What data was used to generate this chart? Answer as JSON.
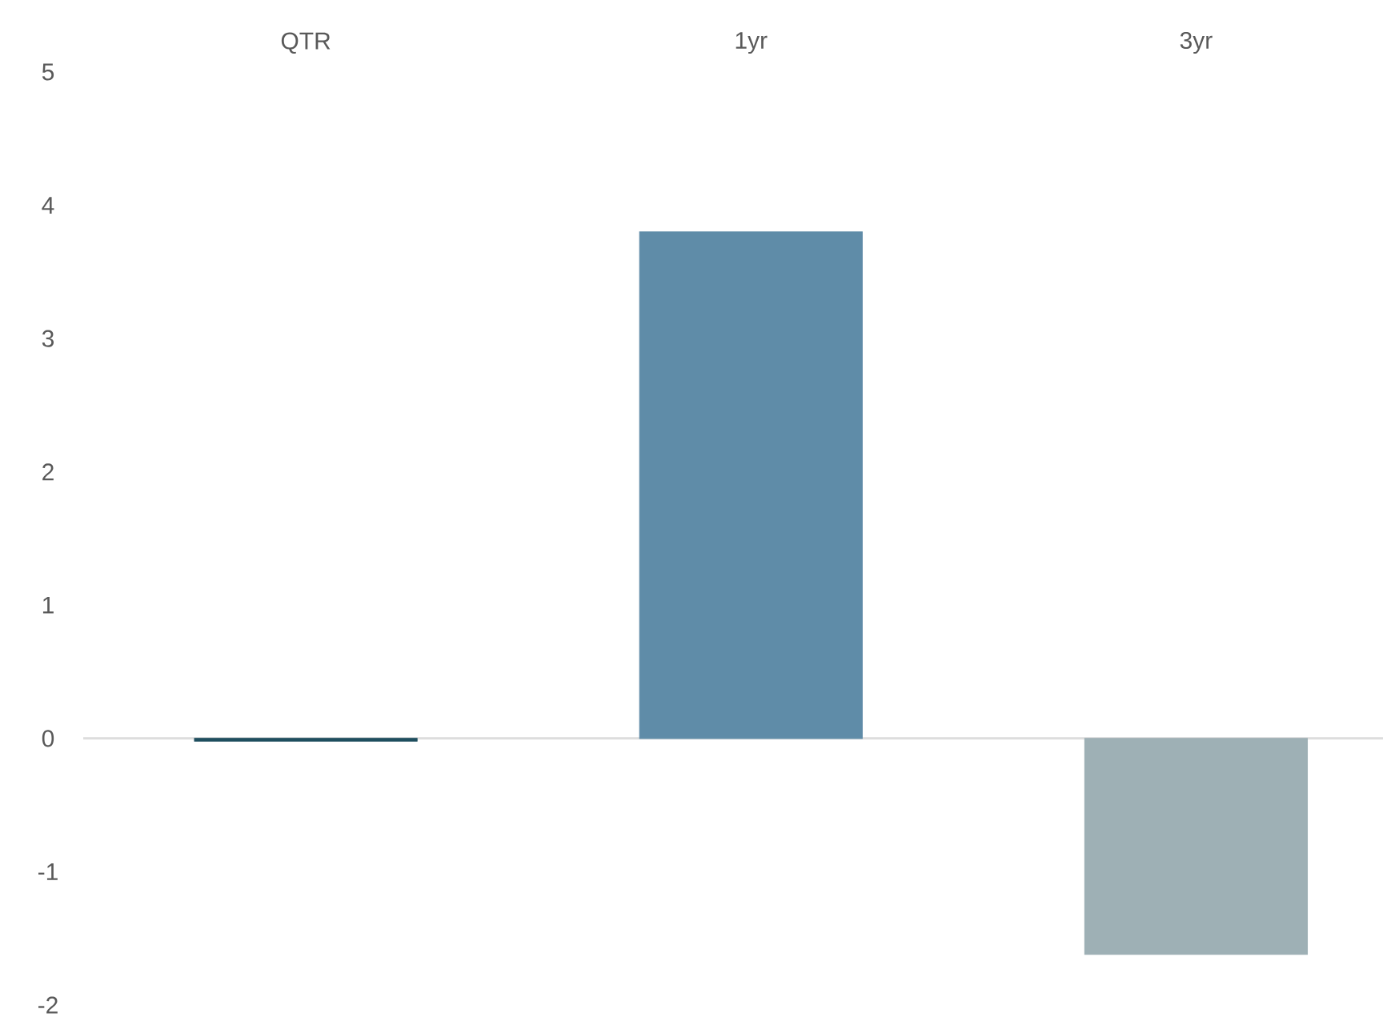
{
  "chart_data": {
    "type": "bar",
    "categories": [
      "QTR",
      "1yr",
      "3yr"
    ],
    "values": [
      -0.02,
      3.8,
      -1.62
    ],
    "colors": [
      "#1f4e5f",
      "#5f8ca8",
      "#9eb0b5"
    ],
    "ylim": [
      -2,
      5
    ],
    "yticks": [
      -2,
      -1,
      0,
      1,
      2,
      3,
      4,
      5
    ],
    "ref_lines": [
      {
        "axis": "y",
        "value": 0,
        "color": "#dddddd"
      }
    ],
    "grid": false
  }
}
